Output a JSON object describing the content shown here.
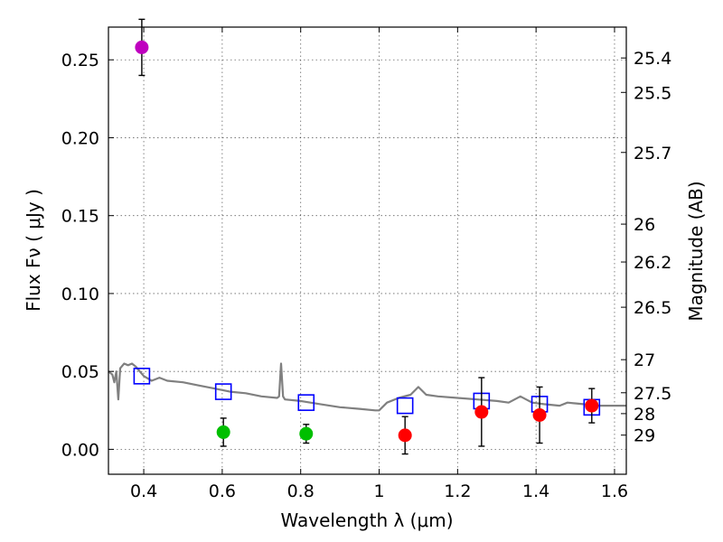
{
  "chart_data": {
    "type": "scatter",
    "xlabel": "Wavelength  λ (μm)",
    "ylabel": "Flux  Fν  ( μJy )",
    "ylabel_right": "Magnitude (AB)",
    "xlim": [
      0.31,
      1.63
    ],
    "ylim": [
      -0.016,
      0.271
    ],
    "grid": true,
    "x_ticks": [
      {
        "value": 0.4,
        "label": "0.4"
      },
      {
        "value": 0.6,
        "label": "0.6"
      },
      {
        "value": 0.8,
        "label": "0.8"
      },
      {
        "value": 1.0,
        "label": "1"
      },
      {
        "value": 1.2,
        "label": "1.2"
      },
      {
        "value": 1.4,
        "label": "1.4"
      },
      {
        "value": 1.6,
        "label": "1.6"
      }
    ],
    "y_ticks": [
      {
        "value": 0.0,
        "label": "0.00"
      },
      {
        "value": 0.05,
        "label": "0.05"
      },
      {
        "value": 0.1,
        "label": "0.10"
      },
      {
        "value": 0.15,
        "label": "0.15"
      },
      {
        "value": 0.2,
        "label": "0.20"
      },
      {
        "value": 0.25,
        "label": "0.25"
      }
    ],
    "magnitude_ticks": [
      {
        "value": 25.4,
        "label": "25.4"
      },
      {
        "value": 25.5,
        "label": "25.5"
      },
      {
        "value": 25.7,
        "label": "25.7"
      },
      {
        "value": 26.0,
        "label": "26"
      },
      {
        "value": 26.2,
        "label": "26.2"
      },
      {
        "value": 26.5,
        "label": "26.5"
      },
      {
        "value": 27.0,
        "label": "27"
      },
      {
        "value": 27.5,
        "label": "27.5"
      },
      {
        "value": 28.0,
        "label": "28"
      },
      {
        "value": 29.0,
        "label": "29"
      }
    ],
    "series": [
      {
        "marker": "circle",
        "color": "#bf00bf",
        "points": [
          {
            "x": 0.395,
            "y": 0.258,
            "err": 0.018
          }
        ]
      },
      {
        "marker": "circle",
        "color": "#00bf00",
        "points": [
          {
            "x": 0.603,
            "y": 0.011,
            "err": 0.009
          },
          {
            "x": 0.814,
            "y": 0.01,
            "err": 0.006
          }
        ]
      },
      {
        "marker": "circle",
        "color": "#ff0000",
        "points": [
          {
            "x": 1.066,
            "y": 0.009,
            "err": 0.012
          },
          {
            "x": 1.261,
            "y": 0.024,
            "err": 0.022
          },
          {
            "x": 1.409,
            "y": 0.022,
            "err": 0.018
          },
          {
            "x": 1.542,
            "y": 0.028,
            "err": 0.011
          }
        ]
      },
      {
        "marker": "open-square",
        "color": "#0000ff",
        "points": [
          {
            "x": 0.395,
            "y": 0.047
          },
          {
            "x": 0.603,
            "y": 0.037
          },
          {
            "x": 0.814,
            "y": 0.03
          },
          {
            "x": 1.066,
            "y": 0.028
          },
          {
            "x": 1.261,
            "y": 0.031
          },
          {
            "x": 1.409,
            "y": 0.029
          },
          {
            "x": 1.542,
            "y": 0.027
          }
        ]
      },
      {
        "marker": "line",
        "color": "#808080",
        "points": [
          {
            "x": 0.31,
            "y": 0.05
          },
          {
            "x": 0.32,
            "y": 0.048
          },
          {
            "x": 0.325,
            "y": 0.043
          },
          {
            "x": 0.33,
            "y": 0.05
          },
          {
            "x": 0.335,
            "y": 0.032
          },
          {
            "x": 0.34,
            "y": 0.052
          },
          {
            "x": 0.35,
            "y": 0.055
          },
          {
            "x": 0.36,
            "y": 0.054
          },
          {
            "x": 0.37,
            "y": 0.055
          },
          {
            "x": 0.38,
            "y": 0.053
          },
          {
            "x": 0.39,
            "y": 0.05
          },
          {
            "x": 0.4,
            "y": 0.047
          },
          {
            "x": 0.42,
            "y": 0.044
          },
          {
            "x": 0.44,
            "y": 0.046
          },
          {
            "x": 0.46,
            "y": 0.044
          },
          {
            "x": 0.5,
            "y": 0.043
          },
          {
            "x": 0.54,
            "y": 0.041
          },
          {
            "x": 0.58,
            "y": 0.039
          },
          {
            "x": 0.62,
            "y": 0.037
          },
          {
            "x": 0.66,
            "y": 0.036
          },
          {
            "x": 0.7,
            "y": 0.034
          },
          {
            "x": 0.74,
            "y": 0.033
          },
          {
            "x": 0.745,
            "y": 0.034
          },
          {
            "x": 0.75,
            "y": 0.055
          },
          {
            "x": 0.755,
            "y": 0.034
          },
          {
            "x": 0.76,
            "y": 0.032
          },
          {
            "x": 0.8,
            "y": 0.031
          },
          {
            "x": 0.85,
            "y": 0.029
          },
          {
            "x": 0.9,
            "y": 0.027
          },
          {
            "x": 0.95,
            "y": 0.026
          },
          {
            "x": 0.99,
            "y": 0.025
          },
          {
            "x": 1.0,
            "y": 0.025
          },
          {
            "x": 1.02,
            "y": 0.03
          },
          {
            "x": 1.05,
            "y": 0.033
          },
          {
            "x": 1.08,
            "y": 0.035
          },
          {
            "x": 1.1,
            "y": 0.04
          },
          {
            "x": 1.12,
            "y": 0.035
          },
          {
            "x": 1.15,
            "y": 0.034
          },
          {
            "x": 1.2,
            "y": 0.033
          },
          {
            "x": 1.25,
            "y": 0.032
          },
          {
            "x": 1.3,
            "y": 0.031
          },
          {
            "x": 1.33,
            "y": 0.03
          },
          {
            "x": 1.36,
            "y": 0.034
          },
          {
            "x": 1.39,
            "y": 0.03
          },
          {
            "x": 1.42,
            "y": 0.029
          },
          {
            "x": 1.46,
            "y": 0.028
          },
          {
            "x": 1.48,
            "y": 0.03
          },
          {
            "x": 1.52,
            "y": 0.029
          },
          {
            "x": 1.56,
            "y": 0.028
          },
          {
            "x": 1.6,
            "y": 0.028
          },
          {
            "x": 1.63,
            "y": 0.028
          }
        ]
      }
    ]
  }
}
